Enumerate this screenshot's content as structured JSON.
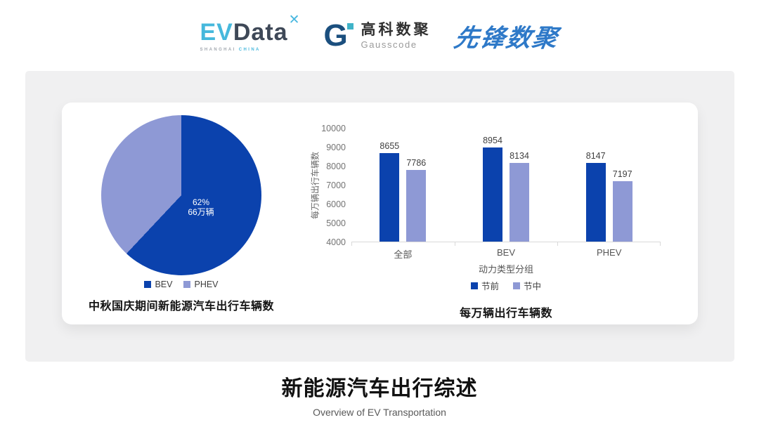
{
  "header": {
    "evdata": {
      "part1": "EV",
      "part2": "Data",
      "mark": "✕",
      "sub1": "SHANGHAI",
      "sub2": "CHINA"
    },
    "gausscode": {
      "mark": "G",
      "name_cn": "高科数聚",
      "name_en": "Gausscode"
    },
    "xianfeng": {
      "name": "先锋数聚"
    }
  },
  "colors": {
    "primary": "#0b42ad",
    "secondary": "#8e99d5",
    "panel_bg": "#f0f0f1",
    "card_bg": "#ffffff"
  },
  "chart_data": [
    {
      "type": "pie",
      "title": "中秋国庆期间新能源汽车出行车辆数",
      "start": "12-oclock-clockwise",
      "legend_position": "bottom",
      "slices": [
        {
          "label": "BEV",
          "percent": 62,
          "amount": "66万辆",
          "color": "#0b42ad"
        },
        {
          "label": "PHEV",
          "percent": 38,
          "amount": "41万辆",
          "color": "#8e99d5"
        }
      ]
    },
    {
      "type": "bar",
      "title": "每万辆出行车辆数",
      "categories": [
        "全部",
        "BEV",
        "PHEV"
      ],
      "series": [
        {
          "name": "节前",
          "values": [
            8655,
            8954,
            8147
          ],
          "color": "#0b42ad"
        },
        {
          "name": "节中",
          "values": [
            7786,
            8134,
            7197
          ],
          "color": "#8e99d5"
        }
      ],
      "xlabel": "动力类型分组",
      "ylabel": "每万辆出行车辆数",
      "ylim": [
        4000,
        10000
      ],
      "ytick_step": 1000,
      "grid": false,
      "legend_position": "bottom"
    }
  ],
  "footer": {
    "title": "新能源汽车出行综述",
    "subtitle": "Overview of EV Transportation"
  }
}
